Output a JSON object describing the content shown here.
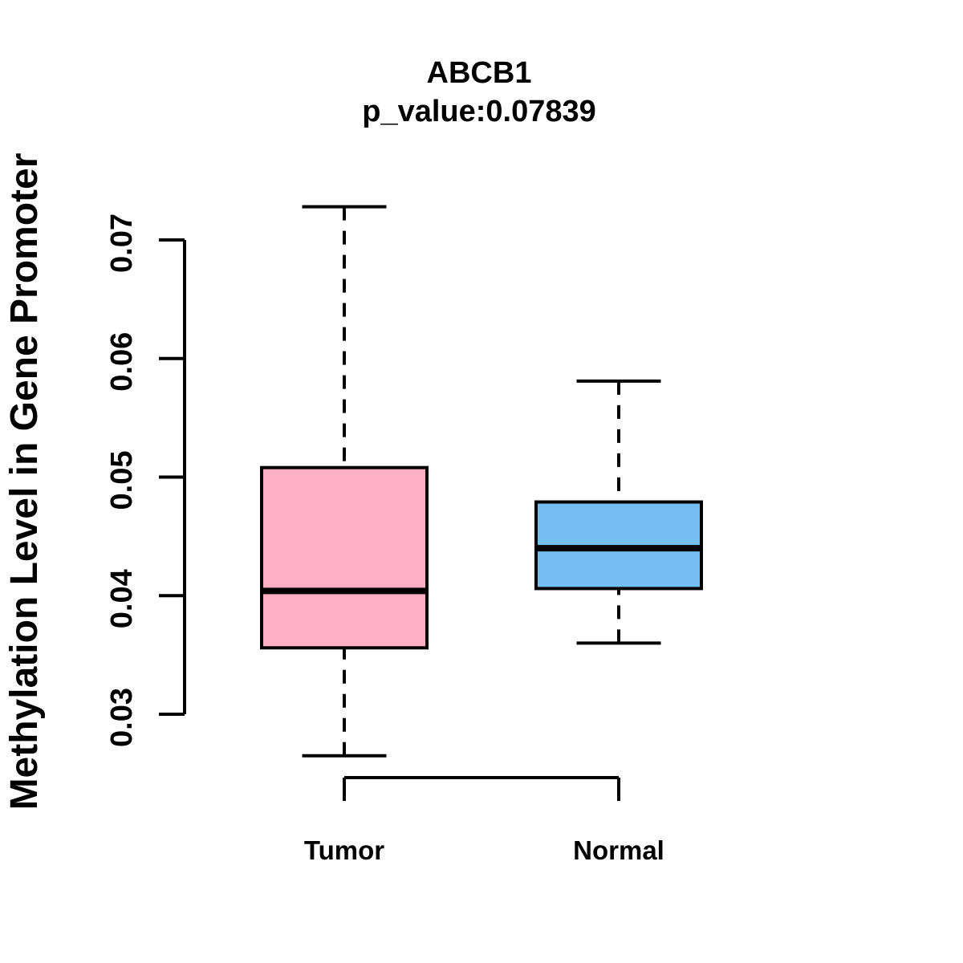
{
  "chart_data": {
    "type": "boxplot",
    "title": "ABCB1",
    "subtitle": "p_value:0.07839",
    "ylabel": "Methylation Level in Gene Promoter",
    "xlabel": "",
    "categories": [
      "Tumor",
      "Normal"
    ],
    "y_ticks": [
      0.03,
      0.04,
      0.05,
      0.06,
      0.07
    ],
    "y_tick_labels": [
      "0.03",
      "0.04",
      "0.05",
      "0.06",
      "0.07"
    ],
    "ylim": [
      0.0265,
      0.073
    ],
    "grid": false,
    "legend": "none",
    "line_color": "#000000",
    "background_color": "#ffffff",
    "series": [
      {
        "name": "Tumor",
        "box_color": "#FFB0C2",
        "whisker_low": 0.0265,
        "q1": 0.0356,
        "median": 0.0404,
        "q3": 0.0508,
        "whisker_high": 0.0728
      },
      {
        "name": "Normal",
        "box_color": "#74BEF2",
        "whisker_low": 0.036,
        "q1": 0.0406,
        "median": 0.044,
        "q3": 0.0479,
        "whisker_high": 0.0581
      }
    ]
  }
}
